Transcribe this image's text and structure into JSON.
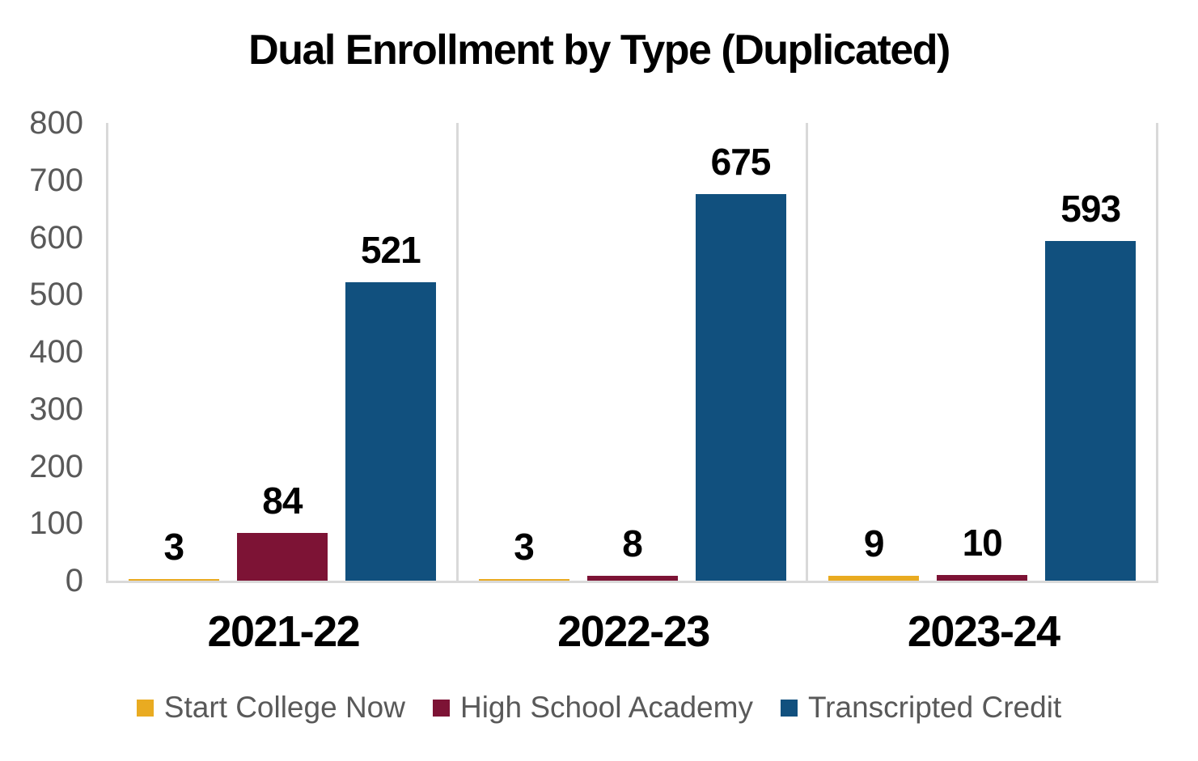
{
  "chart_data": {
    "type": "bar",
    "title": "Dual Enrollment by Type (Duplicated)",
    "categories": [
      "2021-22",
      "2022-23",
      "2023-24"
    ],
    "series": [
      {
        "name": "Start College Now",
        "color": "#E9AB21",
        "values": [
          3,
          3,
          9
        ]
      },
      {
        "name": "High School Academy",
        "color": "#7D1335",
        "values": [
          84,
          8,
          10
        ]
      },
      {
        "name": "Transcripted Credit",
        "color": "#11507E",
        "values": [
          521,
          675,
          593
        ]
      }
    ],
    "xlabel": "",
    "ylabel": "",
    "ylim": [
      0,
      800
    ],
    "yticks": [
      0,
      100,
      200,
      300,
      400,
      500,
      600,
      700,
      800
    ],
    "data_labels": true,
    "legend_position": "bottom",
    "grid": "vertical-category-separators-only"
  },
  "colors": {
    "background": "#FFFFFF",
    "axis_line": "#D9D9D9",
    "tick_text": "#595959",
    "legend_text": "#595959",
    "data_label_text": "#000000"
  }
}
